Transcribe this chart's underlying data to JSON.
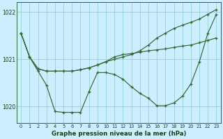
{
  "x": [
    0,
    1,
    2,
    3,
    4,
    5,
    6,
    7,
    8,
    9,
    10,
    11,
    12,
    13,
    14,
    15,
    16,
    17,
    18,
    19,
    20,
    21,
    22,
    23
  ],
  "line_rising": [
    1021.55,
    1021.05,
    1020.8,
    1020.75,
    1020.75,
    1020.75,
    1020.75,
    1020.78,
    1020.82,
    1020.88,
    1020.95,
    1021.0,
    1021.05,
    1021.1,
    1021.18,
    1021.3,
    1021.45,
    1021.55,
    1021.65,
    1021.72,
    1021.78,
    1021.85,
    1021.95,
    1022.05
  ],
  "line_flat": [
    1021.55,
    1021.05,
    1020.8,
    1020.75,
    1020.75,
    1020.75,
    1020.75,
    1020.78,
    1020.82,
    1020.88,
    1020.95,
    1021.05,
    1021.1,
    1021.12,
    1021.15,
    1021.18,
    1021.2,
    1021.22,
    1021.25,
    1021.28,
    1021.3,
    1021.35,
    1021.4,
    1021.45
  ],
  "line_ushaped": [
    1021.55,
    1021.05,
    1020.75,
    1020.45,
    1019.9,
    1019.88,
    1019.88,
    1019.88,
    1020.32,
    1020.72,
    1020.72,
    1020.68,
    1020.58,
    1020.42,
    1020.28,
    1020.18,
    1020.02,
    1020.02,
    1020.08,
    1020.22,
    1020.48,
    1020.95,
    1021.55,
    1021.95
  ],
  "bg_color": "#cceeff",
  "grid_color": "#88cccc",
  "line_color": "#336633",
  "ylabel_ticks": [
    1020,
    1021,
    1022
  ],
  "xlabel": "Graphe pression niveau de la mer (hPa)",
  "ylim": [
    1019.65,
    1022.2
  ],
  "xlim": [
    -0.5,
    23.5
  ]
}
